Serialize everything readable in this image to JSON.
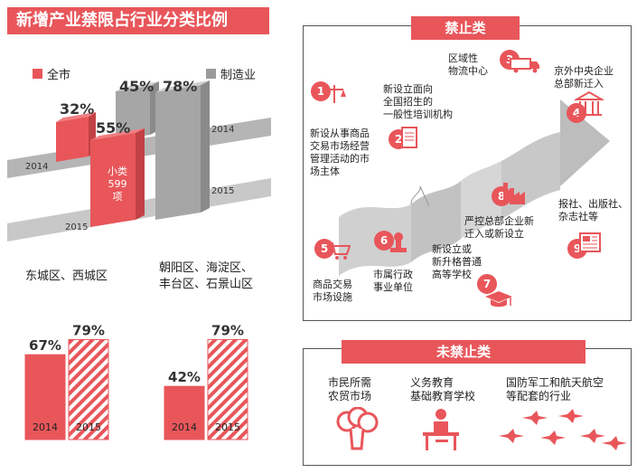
{
  "header": {
    "title": "新增产业禁限占行业分类比例"
  },
  "legend": [
    {
      "label": "全市",
      "color": "#e8565a"
    },
    {
      "label": "制造业",
      "color": "#9a9a9a"
    }
  ],
  "top_chart": {
    "pct_city_2014": "32%",
    "pct_city_2015": "55%",
    "pct_mfg_2014": "45%",
    "pct_mfg_2015": "78%",
    "year_2014_left": "2014",
    "year_2015_left": "2015",
    "year_2014_right": "2014",
    "year_2015_right": "2015",
    "bar_note": [
      "小类",
      "599",
      "项"
    ]
  },
  "district1": {
    "title": "东城区、西城区"
  },
  "district2": {
    "title_lines": [
      "朝阳区、海淀区、",
      "丰台区、石景山区"
    ]
  },
  "chart_data": [
    {
      "type": "bar",
      "title": "新增产业禁限占行业分类比例",
      "series": [
        {
          "name": "全市",
          "values": [
            32,
            55
          ]
        },
        {
          "name": "制造业",
          "values": [
            45,
            78
          ]
        }
      ],
      "categories": [
        "2014",
        "2015"
      ],
      "note": "小类 599 项"
    },
    {
      "type": "bar",
      "title": "东城区、西城区",
      "categories": [
        "2014",
        "2015"
      ],
      "values": [
        67,
        79
      ],
      "labels": [
        "67%",
        "79%"
      ]
    },
    {
      "type": "bar",
      "title": "朝阳区、海淀区、丰台区、石景山区",
      "categories": [
        "2014",
        "2015"
      ],
      "values": [
        42,
        79
      ],
      "labels": [
        "42%",
        "79%"
      ]
    }
  ],
  "banned": {
    "title": "禁止类",
    "items": [
      {
        "num": "1",
        "lines": [
          "新设从事商品",
          "交易市场经营",
          "管理活动的市",
          "场主体"
        ]
      },
      {
        "num": "2",
        "lines": [
          "新设立面向",
          "全国招生的",
          "一般性培训机构"
        ]
      },
      {
        "num": "3",
        "lines": [
          "区域性",
          "物流中心"
        ]
      },
      {
        "num": "4",
        "lines": [
          "京外中央企业",
          "总部新迁入"
        ]
      },
      {
        "num": "5",
        "lines": [
          "商品交易",
          "市场设施"
        ]
      },
      {
        "num": "6",
        "lines": [
          "市属行政",
          "事业单位"
        ]
      },
      {
        "num": "7",
        "lines": [
          "新设立或",
          "新升格普通",
          "高等学校"
        ]
      },
      {
        "num": "8",
        "lines": [
          "严控总部企业新",
          "迁入或新设立"
        ]
      },
      {
        "num": "9",
        "lines": [
          "报社、出版社、",
          "杂志社等"
        ]
      }
    ]
  },
  "not_banned": {
    "title": "未禁止类",
    "items": [
      {
        "lines": [
          "市民所需",
          "农贸市场"
        ]
      },
      {
        "lines": [
          "义务教育",
          "基础教育学校"
        ]
      },
      {
        "lines": [
          "国防军工和航天航空",
          "等配套的行业"
        ]
      }
    ]
  }
}
